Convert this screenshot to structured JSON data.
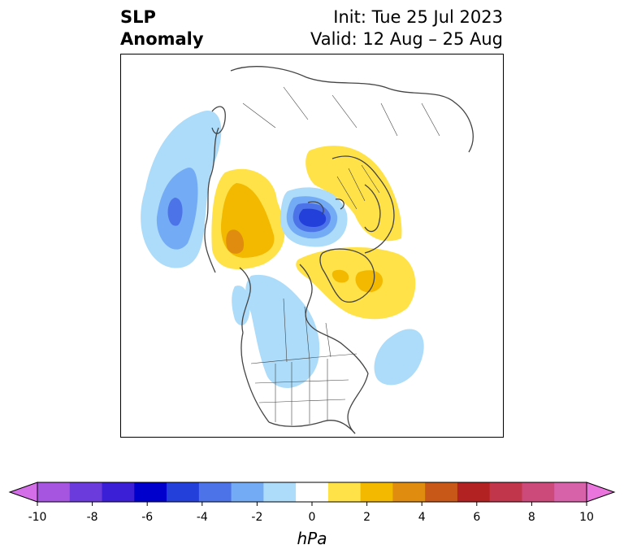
{
  "header": {
    "title_line1": "SLP",
    "title_line2": "Anomaly",
    "init": "Init: Tue 25 Jul 2023",
    "valid": "Valid: 12 Aug – 25 Aug"
  },
  "colorbar": {
    "unit": "hPa",
    "min": -10,
    "max": 10,
    "ticks": [
      "-10",
      "-8",
      "-6",
      "-4",
      "-2",
      "0",
      "2",
      "4",
      "6",
      "8",
      "10"
    ],
    "colors": [
      "#d46de8",
      "#a555e0",
      "#6c3bdc",
      "#3b1fd6",
      "#0000cc",
      "#2340db",
      "#4d73e8",
      "#74abf5",
      "#acdcfa",
      "#ffffff",
      "#ffe247",
      "#f2b900",
      "#e08c0e",
      "#c85817",
      "#b32222",
      "#c2364c",
      "#cc4a7a",
      "#d862aa",
      "#ea75dc"
    ]
  },
  "map": {
    "colors": {
      "neg_light": "#acdcfa",
      "neg_mid": "#74abf5",
      "neg_strong": "#4d73e8",
      "neg_deep": "#2340db",
      "pos_light": "#ffe247",
      "pos_mid": "#f2b900",
      "pos_strong": "#e08c0e",
      "coast": "#444444"
    }
  }
}
